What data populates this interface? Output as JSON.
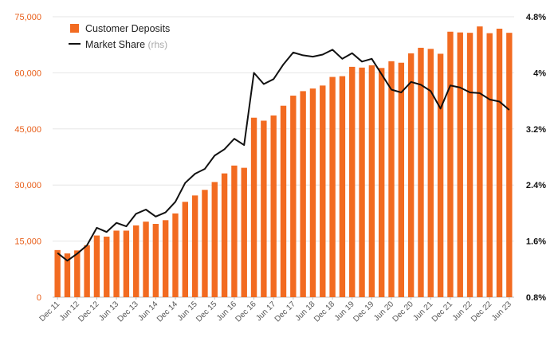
{
  "chart_data": {
    "type": "bar+line",
    "colors": {
      "bar": "#f26b21",
      "line": "#111111",
      "left_axis_text": "#e8601c",
      "right_axis_text": "#111111",
      "grid": "#e6e6e6"
    },
    "legend": {
      "position": "top-left",
      "bar_label": "Customer Deposits",
      "line_label": "Market Share",
      "line_suffix": "(rhs)"
    },
    "left_axis": {
      "min": 0,
      "max": 75000,
      "ticks": [
        "0",
        "15,000",
        "30,000",
        "45,000",
        "60,000",
        "75,000"
      ]
    },
    "right_axis": {
      "min": 0.8,
      "max": 4.8,
      "ticks": [
        "0.8%",
        "1.6%",
        "2.4%",
        "3.2%",
        "4%",
        "4.8%"
      ]
    },
    "x_labels": [
      "Dec 11",
      "Jun 12",
      "Dec 12",
      "Jun 13",
      "Dec 13",
      "Jun 14",
      "Dec 14",
      "Jun 15",
      "Dec 15",
      "Jun 16",
      "Dec 16",
      "Jun 17",
      "Dec 17",
      "Jun 18",
      "Dec 18",
      "Jun 19",
      "Dec 19",
      "Jun 20",
      "Dec 20",
      "Jun 21",
      "Dec 21",
      "Jun 22",
      "Dec 22",
      "Jun 23"
    ],
    "periods": [
      "Dec 11",
      "Mar 12",
      "Jun 12",
      "Sep 12",
      "Dec 12",
      "Mar 13",
      "Jun 13",
      "Sep 13",
      "Dec 13",
      "Mar 14",
      "Jun 14",
      "Sep 14",
      "Dec 14",
      "Mar 15",
      "Jun 15",
      "Sep 15",
      "Dec 15",
      "Mar 16",
      "Jun 16",
      "Sep 16",
      "Dec 16",
      "Mar 17",
      "Jun 17",
      "Sep 17",
      "Dec 17",
      "Mar 18",
      "Jun 18",
      "Sep 18",
      "Dec 18",
      "Mar 19",
      "Jun 19",
      "Sep 19",
      "Dec 19",
      "Mar 20",
      "Jun 20",
      "Sep 20",
      "Dec 20",
      "Mar 21",
      "Jun 21",
      "Sep 21",
      "Dec 21",
      "Mar 22",
      "Jun 22",
      "Sep 22",
      "Dec 22",
      "Mar 23",
      "Jun 23"
    ],
    "series": [
      {
        "name": "Customer Deposits",
        "kind": "bar",
        "axis": "left",
        "values": [
          12600,
          11700,
          12500,
          13900,
          16500,
          16200,
          17800,
          17800,
          19200,
          20200,
          19600,
          20600,
          22400,
          25500,
          27200,
          28700,
          30800,
          33100,
          35200,
          34600,
          48000,
          47200,
          48600,
          51200,
          53900,
          55100,
          55800,
          56600,
          58900,
          59100,
          61600,
          61400,
          62000,
          61300,
          63100,
          62700,
          65200,
          66700,
          66400,
          65100,
          71000,
          70800,
          70700,
          72400,
          70600,
          71800,
          70700
        ]
      },
      {
        "name": "Market Share",
        "kind": "line",
        "axis": "right",
        "unit": "%",
        "values": [
          1.43,
          1.32,
          1.42,
          1.54,
          1.79,
          1.73,
          1.86,
          1.81,
          1.99,
          2.05,
          1.95,
          2.01,
          2.16,
          2.43,
          2.56,
          2.63,
          2.82,
          2.91,
          3.06,
          2.97,
          4.0,
          3.84,
          3.91,
          4.12,
          4.29,
          4.25,
          4.23,
          4.26,
          4.33,
          4.2,
          4.28,
          4.16,
          4.2,
          3.98,
          3.76,
          3.72,
          3.87,
          3.83,
          3.74,
          3.49,
          3.82,
          3.79,
          3.72,
          3.71,
          3.62,
          3.59,
          3.47
        ]
      }
    ]
  }
}
